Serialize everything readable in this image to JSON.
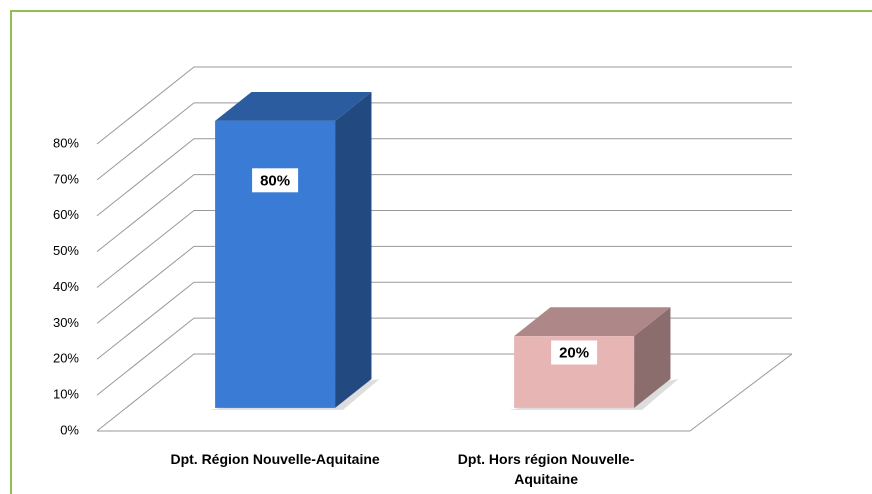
{
  "chart_data": {
    "type": "bar3d",
    "categories": [
      "Dpt. Région Nouvelle-Aquitaine",
      "Dpt. Hors région Nouvelle-Aquitaine"
    ],
    "values": [
      80,
      20
    ],
    "value_labels": [
      "80%",
      "20%"
    ],
    "colors": [
      "#3a7bd5",
      "#e8b5b5"
    ],
    "ylim": [
      0,
      80
    ],
    "yticks": [
      {
        "value": 0,
        "label": "0%"
      },
      {
        "value": 10,
        "label": "10%"
      },
      {
        "value": 20,
        "label": "20%"
      },
      {
        "value": 30,
        "label": "30%"
      },
      {
        "value": 40,
        "label": "40%"
      },
      {
        "value": 50,
        "label": "50%"
      },
      {
        "value": 60,
        "label": "60%"
      },
      {
        "value": 70,
        "label": "70%"
      },
      {
        "value": 80,
        "label": "80%"
      }
    ],
    "grid": true
  }
}
